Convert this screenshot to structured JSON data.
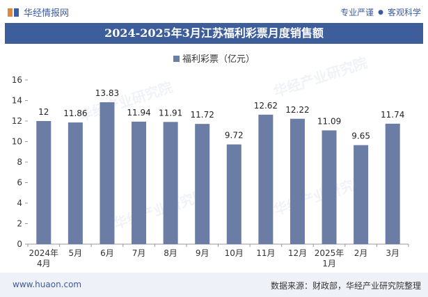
{
  "header": {
    "brand": "华经情报网",
    "slogan_left": "专业严谨",
    "slogan_right": "客观科学"
  },
  "title": "2024-2025年3月江苏福利彩票月度销售额",
  "footer": {
    "site": "www.huaon.com",
    "source": "数据来源：财政部，华经产业研究院整理"
  },
  "watermark": "华经产业研究院",
  "colors": {
    "bar": "#6b7da5",
    "title_bg": "#3d5d9b",
    "brand": "#3a5aa0"
  },
  "chart_data": {
    "type": "bar",
    "categories": [
      "2024年\n4月",
      "5月",
      "6月",
      "7月",
      "8月",
      "9月",
      "10月",
      "11月",
      "12月",
      "2025年\n1月",
      "2月",
      "3月"
    ],
    "series": [
      {
        "name": "福利彩票（亿元）",
        "values": [
          12,
          11.86,
          13.83,
          11.94,
          11.91,
          11.72,
          9.72,
          12.62,
          12.22,
          11.09,
          9.65,
          11.74
        ]
      }
    ],
    "value_labels": [
      "12",
      "11.86",
      "13.83",
      "11.94",
      "11.91",
      "11.72",
      "9.72",
      "12.62",
      "12.22",
      "11.09",
      "9.65",
      "11.74"
    ],
    "ylim": [
      0,
      16
    ],
    "yticks": [
      0,
      2,
      4,
      6,
      8,
      10,
      12,
      14,
      16
    ],
    "grid": false,
    "legend_position": "top-center"
  }
}
